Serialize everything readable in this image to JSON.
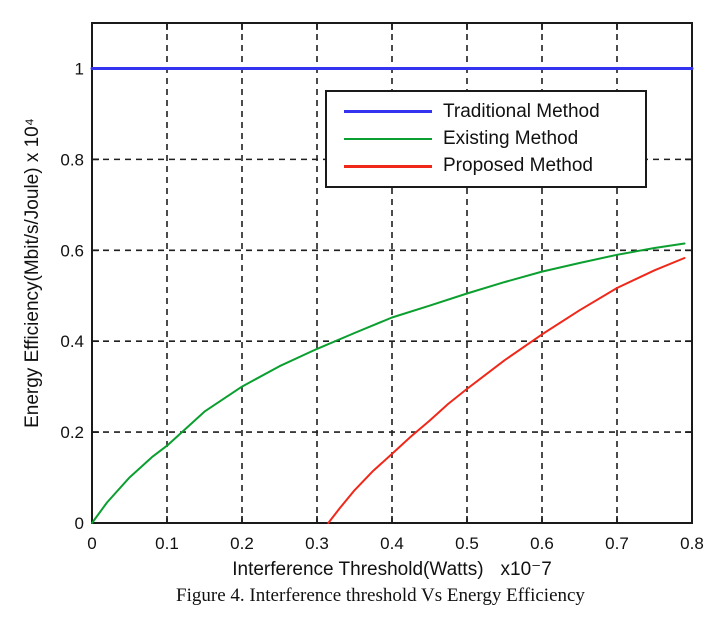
{
  "figure": {
    "background": "#ffffff",
    "caption": "Figure 4. Interference threshold Vs Energy Efficiency"
  },
  "chart_data": {
    "type": "line",
    "title": "",
    "xlabel": "Interference Threshold(Watts)",
    "xlabel_multiplier": "x10⁻7",
    "ylabel": "Energy Efficiency(Mbit/s/Joule) x 10⁴",
    "xlim": [
      0,
      0.8
    ],
    "ylim": [
      0,
      1.1
    ],
    "x_ticks": [
      0,
      0.1,
      0.2,
      0.3,
      0.4,
      0.5,
      0.6,
      0.7,
      0.8
    ],
    "y_ticks": [
      0,
      0.2,
      0.4,
      0.6,
      0.8,
      1
    ],
    "grid": "dashed",
    "grid_color": "#1f1f1f",
    "axis_color": "#1a1a1a",
    "legend": {
      "position": "upper-right-inside",
      "entries": [
        "Traditional Method",
        "Existing Method",
        "Proposed Method"
      ]
    },
    "series": [
      {
        "name": "Traditional Method",
        "color": "#3333f0",
        "line_width": 3,
        "points": [
          [
            0,
            1
          ],
          [
            0.8,
            1
          ]
        ]
      },
      {
        "name": "Existing Method",
        "color": "#0b9f2f",
        "line_width": 2,
        "points": [
          [
            0,
            0
          ],
          [
            0.02,
            0.045
          ],
          [
            0.05,
            0.1
          ],
          [
            0.08,
            0.145
          ],
          [
            0.1,
            0.17
          ],
          [
            0.15,
            0.245
          ],
          [
            0.2,
            0.3
          ],
          [
            0.25,
            0.345
          ],
          [
            0.3,
            0.383
          ],
          [
            0.35,
            0.418
          ],
          [
            0.4,
            0.452
          ],
          [
            0.45,
            0.478
          ],
          [
            0.5,
            0.505
          ],
          [
            0.55,
            0.53
          ],
          [
            0.6,
            0.553
          ],
          [
            0.65,
            0.572
          ],
          [
            0.7,
            0.59
          ],
          [
            0.75,
            0.605
          ],
          [
            0.79,
            0.615
          ]
        ]
      },
      {
        "name": "Proposed Method",
        "color": "#f0281a",
        "line_width": 2,
        "points": [
          [
            0.315,
            0
          ],
          [
            0.33,
            0.032
          ],
          [
            0.35,
            0.072
          ],
          [
            0.375,
            0.115
          ],
          [
            0.4,
            0.152
          ],
          [
            0.425,
            0.19
          ],
          [
            0.45,
            0.225
          ],
          [
            0.475,
            0.262
          ],
          [
            0.5,
            0.295
          ],
          [
            0.55,
            0.358
          ],
          [
            0.6,
            0.415
          ],
          [
            0.65,
            0.468
          ],
          [
            0.7,
            0.517
          ],
          [
            0.75,
            0.556
          ],
          [
            0.79,
            0.583
          ]
        ]
      }
    ]
  }
}
